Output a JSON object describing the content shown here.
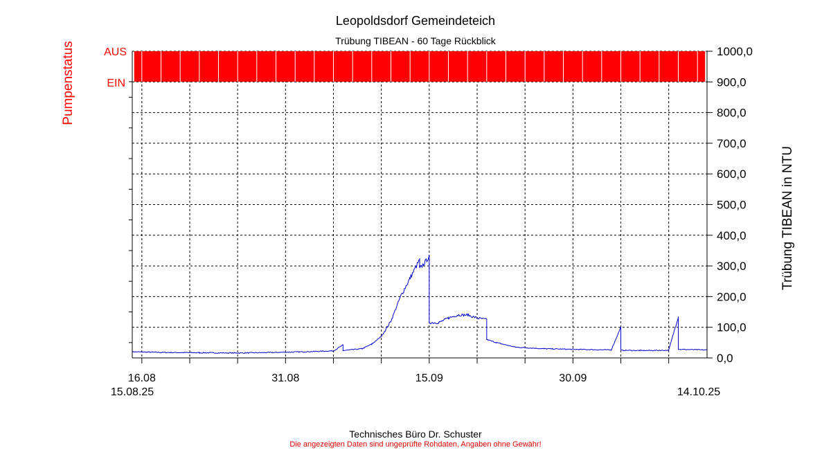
{
  "colors": {
    "pump": "#ff0000",
    "line": "#0000cc",
    "grid": "#000000",
    "disclaimer": "#e00000"
  },
  "footer": {
    "company": "Technisches Büro Dr. Schuster",
    "disclaimer": "Die angezeigten Daten sind ungeprüfte Rohdaten, Angaben ohne Gewähr!"
  },
  "chart_data": {
    "type": "line",
    "title": "Leopoldsdorf Gemeindeteich",
    "subtitle": "Trübung  TIBEAN - 60 Tage Rückblick",
    "ylabel": "Trübung  TIBEAN in NTU",
    "pump_label": "Pumpenstatus",
    "pump_ticks": [
      "AUS",
      "EIN"
    ],
    "ylim": [
      0,
      1000
    ],
    "yticks": [
      0,
      100,
      200,
      300,
      400,
      500,
      600,
      700,
      800,
      900,
      1000
    ],
    "ytick_labels": [
      "0,0",
      "100,0",
      "200,0",
      "300,0",
      "400,0",
      "500,0",
      "600,0",
      "700,0",
      "800,0",
      "900,0",
      "1000,0"
    ],
    "x_start": "2025-08-15",
    "x_end": "2025-10-14",
    "x_tick_dates": [
      "2025-08-16",
      "2025-08-31",
      "2025-09-15",
      "2025-09-30"
    ],
    "x_tick_labels": [
      "16.08",
      "31.08",
      "15.09",
      "30.09"
    ],
    "x_start_label": "15.08.25",
    "x_end_label": "14.10.25",
    "grid": true,
    "pump_on_intervals_days": [
      [
        0.2,
        59.8
      ]
    ],
    "series": [
      {
        "points": [
          [
            "2025-08-15",
            20
          ],
          [
            "2025-08-18",
            18
          ],
          [
            "2025-08-22",
            17
          ],
          [
            "2025-08-26",
            16
          ],
          [
            "2025-08-30",
            18
          ],
          [
            "2025-09-02",
            20
          ],
          [
            "2025-09-05",
            23
          ],
          [
            "2025-09-06",
            42
          ],
          [
            "2025-09-06",
            24
          ],
          [
            "2025-09-08",
            30
          ],
          [
            "2025-09-09",
            45
          ],
          [
            "2025-09-10",
            70
          ],
          [
            "2025-09-11",
            120
          ],
          [
            "2025-09-12",
            200
          ],
          [
            "2025-09-13",
            260
          ],
          [
            "2025-09-14",
            320
          ],
          [
            "2025-09-14",
            290
          ],
          [
            "2025-09-15",
            330
          ],
          [
            "2025-09-15",
            115
          ],
          [
            "2025-09-16",
            115
          ],
          [
            "2025-09-17",
            130
          ],
          [
            "2025-09-18",
            140
          ],
          [
            "2025-09-19",
            140
          ],
          [
            "2025-09-20",
            130
          ],
          [
            "2025-09-21",
            125
          ],
          [
            "2025-09-21",
            60
          ],
          [
            "2025-09-22",
            50
          ],
          [
            "2025-09-24",
            35
          ],
          [
            "2025-09-27",
            30
          ],
          [
            "2025-09-30",
            28
          ],
          [
            "2025-10-04",
            26
          ],
          [
            "2025-10-05",
            100
          ],
          [
            "2025-10-05",
            25
          ],
          [
            "2025-10-07",
            24
          ],
          [
            "2025-10-10",
            25
          ],
          [
            "2025-10-11",
            135
          ],
          [
            "2025-10-11",
            28
          ],
          [
            "2025-10-14",
            26
          ]
        ]
      }
    ]
  }
}
